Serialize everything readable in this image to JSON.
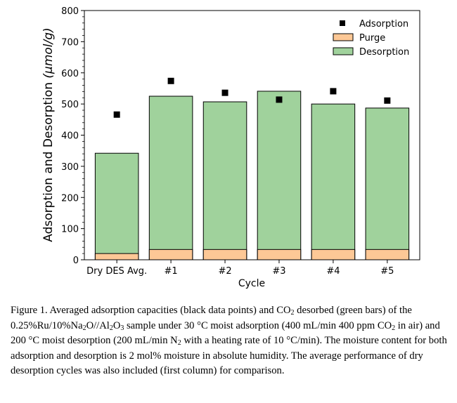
{
  "chart_data": {
    "type": "bar",
    "stacked": true,
    "title": "",
    "xlabel": "Cycle",
    "ylabel": "Adsorption and Desorption (μmol/g)",
    "ylabel_plain": "Adsorption and Desorption ",
    "ylabel_unit": "(μmol/g)",
    "ylim": [
      0,
      800
    ],
    "yticks": [
      0,
      100,
      200,
      300,
      400,
      500,
      600,
      700,
      800
    ],
    "categories": [
      "Dry DES Avg.",
      "#1",
      "#2",
      "#3",
      "#4",
      "#5"
    ],
    "series": [
      {
        "name": "Purge",
        "kind": "bar",
        "color": "#fdc896",
        "values": [
          20,
          33,
          33,
          33,
          33,
          33
        ]
      },
      {
        "name": "Desorption",
        "kind": "bar",
        "color": "#a0d29c",
        "values": [
          342,
          525,
          507,
          541,
          500,
          487
        ]
      },
      {
        "name": "Adsorption",
        "kind": "scatter",
        "marker": "square",
        "color": "#000000",
        "values": [
          466,
          574,
          536,
          514,
          541,
          511
        ]
      }
    ],
    "legend": {
      "placement": "top-right",
      "entries": [
        "Adsorption",
        "Purge",
        "Desorption"
      ]
    },
    "grid": false
  },
  "caption": {
    "parts": [
      "Figure 1. Averaged adsorption capacities (black data points) and CO",
      "2",
      " desorbed (green bars) of the 0.25%Ru/10%Na",
      "2",
      "O//Al",
      "2",
      "O",
      "3",
      " sample under 30 °C moist adsorption (400 mL/min 400 ppm CO",
      "2",
      " in air) and 200 °C moist desorption (200 mL/min N",
      "2",
      " with a heating rate of 10 °C/min). The moisture content for both adsorption and desorption is 2 mol% moisture in absolute humidity. The average performance of dry desorption cycles was also included (first column) for comparison."
    ]
  }
}
